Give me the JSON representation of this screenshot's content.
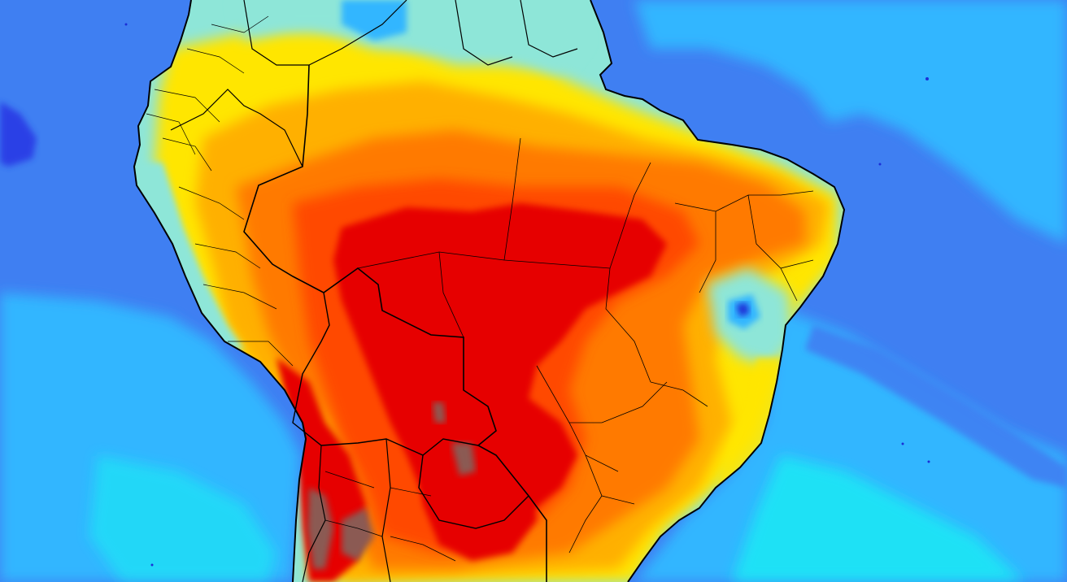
{
  "map": {
    "kind": "temperature-field",
    "region": "South America",
    "colors": {
      "ocean_deep": "#3f7ff2",
      "ocean_mid": "#33b6ff",
      "ocean_light": "#1ee6f5",
      "land_cool": "#8ee6d8",
      "land_mild": "#fffaa8",
      "yellow": "#ffe600",
      "light_orange": "#ffb000",
      "orange": "#ff7a00",
      "red_orange": "#ff4a00",
      "red": "#e60000",
      "brown": "#8b5a52",
      "dark_blue": "#1b2fd6",
      "border": "#000000"
    }
  }
}
